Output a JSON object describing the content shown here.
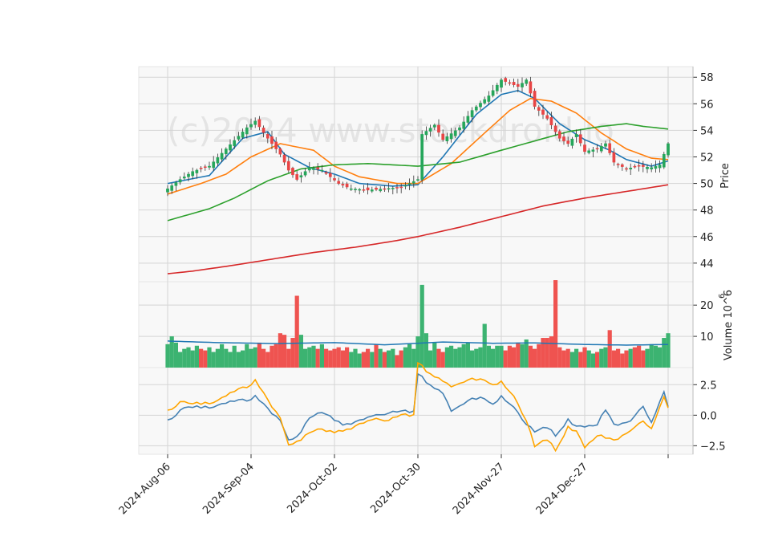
{
  "chart_data": {
    "type": "candlestick",
    "watermark": "(c)2024 www.stockdroid.io",
    "x_ticks": [
      "2024-Aug-06",
      "2024-Sep-04",
      "2024-Oct-02",
      "2024-Oct-30",
      "2024-Nov-27",
      "2024-Dec-27"
    ],
    "price_panel": {
      "ylabel": "Price",
      "ylim": [
        42.6,
        58.8
      ],
      "yticks": [
        44,
        46,
        48,
        50,
        52,
        54,
        56,
        58
      ],
      "anchors": [
        [
          0,
          49.6
        ],
        [
          3,
          50.3
        ],
        [
          6,
          50.9
        ],
        [
          10,
          51.3
        ],
        [
          14,
          52.6
        ],
        [
          19,
          54.2
        ],
        [
          21,
          54.7
        ],
        [
          24,
          53.4
        ],
        [
          27,
          52.2
        ],
        [
          29,
          51.0
        ],
        [
          31,
          50.3
        ],
        [
          34,
          51.2
        ],
        [
          37,
          51.0
        ],
        [
          41,
          50.0
        ],
        [
          44,
          49.6
        ],
        [
          48,
          49.5
        ],
        [
          52,
          49.6
        ],
        [
          56,
          49.7
        ],
        [
          60,
          50.3
        ],
        [
          61,
          53.7
        ],
        [
          64,
          54.4
        ],
        [
          66,
          53.3
        ],
        [
          70,
          54.2
        ],
        [
          73,
          55.5
        ],
        [
          77,
          56.6
        ],
        [
          80,
          57.8
        ],
        [
          84,
          57.3
        ],
        [
          86,
          57.8
        ],
        [
          88,
          55.8
        ],
        [
          91,
          54.9
        ],
        [
          94,
          53.4
        ],
        [
          96,
          53.0
        ],
        [
          98,
          53.7
        ],
        [
          100,
          52.4
        ],
        [
          103,
          52.6
        ],
        [
          105,
          53.0
        ],
        [
          107,
          51.6
        ],
        [
          110,
          51.1
        ],
        [
          113,
          51.3
        ],
        [
          116,
          51.2
        ],
        [
          118,
          51.4
        ],
        [
          120,
          53.0
        ]
      ],
      "ma_lines": [
        {
          "color": "#1f77b4",
          "anchors": [
            [
              0,
              50.0
            ],
            [
              10,
              50.6
            ],
            [
              18,
              53.4
            ],
            [
              24,
              53.9
            ],
            [
              28,
              52.2
            ],
            [
              34,
              51.2
            ],
            [
              40,
              50.7
            ],
            [
              46,
              50.0
            ],
            [
              54,
              49.8
            ],
            [
              60,
              49.9
            ],
            [
              66,
              52.0
            ],
            [
              74,
              55.2
            ],
            [
              80,
              56.7
            ],
            [
              84,
              57.0
            ],
            [
              88,
              56.4
            ],
            [
              94,
              54.5
            ],
            [
              100,
              53.3
            ],
            [
              106,
              52.5
            ],
            [
              110,
              51.8
            ],
            [
              116,
              51.3
            ],
            [
              120,
              51.7
            ]
          ]
        },
        {
          "color": "#ff7f0e",
          "anchors": [
            [
              0,
              49.2
            ],
            [
              8,
              50.0
            ],
            [
              14,
              50.7
            ],
            [
              20,
              52.0
            ],
            [
              27,
              53.0
            ],
            [
              35,
              52.5
            ],
            [
              40,
              51.3
            ],
            [
              46,
              50.5
            ],
            [
              55,
              50.0
            ],
            [
              60,
              50.0
            ],
            [
              68,
              51.5
            ],
            [
              76,
              53.8
            ],
            [
              82,
              55.5
            ],
            [
              87,
              56.4
            ],
            [
              92,
              56.2
            ],
            [
              98,
              55.3
            ],
            [
              104,
              53.8
            ],
            [
              110,
              52.6
            ],
            [
              116,
              51.9
            ],
            [
              120,
              51.8
            ]
          ]
        },
        {
          "color": "#2ca02c",
          "anchors": [
            [
              0,
              47.2
            ],
            [
              10,
              48.1
            ],
            [
              16,
              48.9
            ],
            [
              24,
              50.2
            ],
            [
              32,
              51.1
            ],
            [
              40,
              51.4
            ],
            [
              48,
              51.5
            ],
            [
              54,
              51.4
            ],
            [
              60,
              51.3
            ],
            [
              70,
              51.6
            ],
            [
              80,
              52.5
            ],
            [
              88,
              53.2
            ],
            [
              96,
              53.9
            ],
            [
              104,
              54.3
            ],
            [
              110,
              54.5
            ],
            [
              114,
              54.3
            ],
            [
              120,
              54.1
            ]
          ]
        },
        {
          "color": "#d62728",
          "anchors": [
            [
              0,
              43.2
            ],
            [
              6,
              43.4
            ],
            [
              15,
              43.8
            ],
            [
              25,
              44.3
            ],
            [
              35,
              44.8
            ],
            [
              45,
              45.2
            ],
            [
              55,
              45.7
            ],
            [
              60,
              46.0
            ],
            [
              70,
              46.7
            ],
            [
              80,
              47.5
            ],
            [
              90,
              48.3
            ],
            [
              100,
              48.9
            ],
            [
              110,
              49.4
            ],
            [
              120,
              49.9
            ]
          ]
        }
      ]
    },
    "volume_panel": {
      "ylabel": "Volume 10^6",
      "ylim": [
        0,
        27.5
      ],
      "yticks": [
        10,
        20
      ],
      "volumes": [
        7.5,
        10.0,
        8.0,
        5.0,
        6.0,
        6.5,
        5.5,
        7.0,
        6.0,
        5.5,
        6.5,
        5.0,
        6.0,
        7.5,
        6.0,
        5.0,
        7.0,
        5.0,
        5.5,
        7.5,
        6.0,
        6.5,
        8.0,
        6.0,
        5.0,
        7.0,
        7.5,
        11.0,
        10.5,
        6.0,
        9.5,
        23.0,
        10.5,
        6.0,
        6.5,
        7.0,
        6.0,
        7.5,
        6.0,
        5.5,
        6.0,
        6.5,
        5.5,
        6.5,
        5.0,
        6.0,
        4.5,
        5.0,
        6.0,
        5.0,
        7.5,
        6.0,
        5.0,
        5.5,
        6.0,
        4.0,
        5.5,
        6.5,
        7.5,
        6.0,
        10.0,
        26.5,
        11.0,
        5.5,
        8.0,
        6.0,
        5.0,
        6.5,
        7.0,
        6.0,
        6.5,
        7.5,
        8.0,
        5.5,
        6.0,
        6.5,
        14.0,
        7.0,
        6.0,
        7.0,
        7.0,
        5.5,
        7.0,
        6.5,
        8.0,
        7.5,
        9.0,
        7.0,
        6.0,
        7.5,
        9.5,
        9.5,
        10.0,
        28.0,
        6.5,
        5.5,
        6.0,
        5.0,
        6.0,
        5.0,
        6.5,
        5.5,
        4.5,
        5.0,
        6.0,
        6.5,
        12.0,
        5.5,
        6.0,
        4.5,
        5.5,
        6.0,
        6.5,
        7.0,
        5.5,
        6.0,
        7.5,
        7.0,
        6.5,
        9.5,
        11.0
      ],
      "avg_line_color": "#1f77b4",
      "avg_line": [
        [
          0,
          8.5
        ],
        [
          12,
          8.0
        ],
        [
          26,
          7.7
        ],
        [
          40,
          8.0
        ],
        [
          52,
          7.3
        ],
        [
          60,
          7.8
        ],
        [
          66,
          8.2
        ],
        [
          78,
          7.8
        ],
        [
          88,
          7.9
        ],
        [
          100,
          7.4
        ],
        [
          110,
          7.2
        ],
        [
          120,
          7.4
        ]
      ]
    },
    "indicator_panel": {
      "ylim": [
        -3.2,
        3.9
      ],
      "yticks": [
        -2.5,
        0.0,
        2.5
      ],
      "lines": [
        {
          "color": "#4682b4",
          "anchors": [
            [
              0,
              -0.5
            ],
            [
              3,
              0.3
            ],
            [
              5,
              0.8
            ],
            [
              8,
              0.6
            ],
            [
              12,
              0.8
            ],
            [
              16,
              1.2
            ],
            [
              20,
              1.3
            ],
            [
              21,
              1.5
            ],
            [
              24,
              0.5
            ],
            [
              27,
              -0.5
            ],
            [
              29,
              -2.0
            ],
            [
              31,
              -1.8
            ],
            [
              34,
              -0.2
            ],
            [
              36,
              0.2
            ],
            [
              38,
              0.1
            ],
            [
              40,
              -0.4
            ],
            [
              42,
              -0.8
            ],
            [
              46,
              -0.5
            ],
            [
              50,
              0.0
            ],
            [
              53,
              0.1
            ],
            [
              56,
              0.4
            ],
            [
              59,
              0.3
            ],
            [
              60,
              3.5
            ],
            [
              62,
              2.7
            ],
            [
              66,
              1.8
            ],
            [
              68,
              0.4
            ],
            [
              72,
              1.2
            ],
            [
              75,
              1.5
            ],
            [
              78,
              0.9
            ],
            [
              80,
              1.6
            ],
            [
              83,
              0.6
            ],
            [
              86,
              -0.8
            ],
            [
              88,
              -1.3
            ],
            [
              91,
              -1.0
            ],
            [
              93,
              -1.6
            ],
            [
              96,
              -0.4
            ],
            [
              98,
              -0.9
            ],
            [
              100,
              -1.0
            ],
            [
              103,
              -0.7
            ],
            [
              105,
              0.4
            ],
            [
              107,
              -0.8
            ],
            [
              109,
              -0.7
            ],
            [
              111,
              -0.5
            ],
            [
              114,
              0.8
            ],
            [
              116,
              -0.6
            ],
            [
              119,
              1.9
            ],
            [
              120,
              0.7
            ]
          ]
        },
        {
          "color": "#ffa500",
          "anchors": [
            [
              0,
              0.3
            ],
            [
              3,
              1.0
            ],
            [
              5,
              1.1
            ],
            [
              8,
              0.9
            ],
            [
              12,
              1.2
            ],
            [
              16,
              2.0
            ],
            [
              20,
              2.5
            ],
            [
              21,
              2.8
            ],
            [
              24,
              1.2
            ],
            [
              27,
              -0.3
            ],
            [
              29,
              -2.4
            ],
            [
              31,
              -2.2
            ],
            [
              34,
              -1.4
            ],
            [
              36,
              -1.1
            ],
            [
              38,
              -1.3
            ],
            [
              40,
              -1.4
            ],
            [
              42,
              -1.3
            ],
            [
              46,
              -0.8
            ],
            [
              50,
              -0.3
            ],
            [
              53,
              -0.5
            ],
            [
              56,
              0.1
            ],
            [
              59,
              0.0
            ],
            [
              60,
              4.4
            ],
            [
              62,
              3.6
            ],
            [
              66,
              2.8
            ],
            [
              68,
              2.4
            ],
            [
              72,
              2.9
            ],
            [
              75,
              3.0
            ],
            [
              78,
              2.5
            ],
            [
              80,
              2.8
            ],
            [
              83,
              1.5
            ],
            [
              86,
              -0.5
            ],
            [
              88,
              -2.5
            ],
            [
              91,
              -2.0
            ],
            [
              93,
              -2.8
            ],
            [
              96,
              -1.0
            ],
            [
              98,
              -1.3
            ],
            [
              100,
              -2.7
            ],
            [
              103,
              -1.6
            ],
            [
              105,
              -1.9
            ],
            [
              107,
              -2.1
            ],
            [
              109,
              -1.7
            ],
            [
              111,
              -1.3
            ],
            [
              114,
              -0.4
            ],
            [
              116,
              -1.1
            ],
            [
              119,
              1.5
            ],
            [
              120,
              0.6
            ]
          ]
        }
      ]
    },
    "colors": {
      "up": "#26a65b",
      "down": "#e84545",
      "up_vol": "#3cb371",
      "down_vol": "#ef5350"
    },
    "num_candles": 121
  }
}
